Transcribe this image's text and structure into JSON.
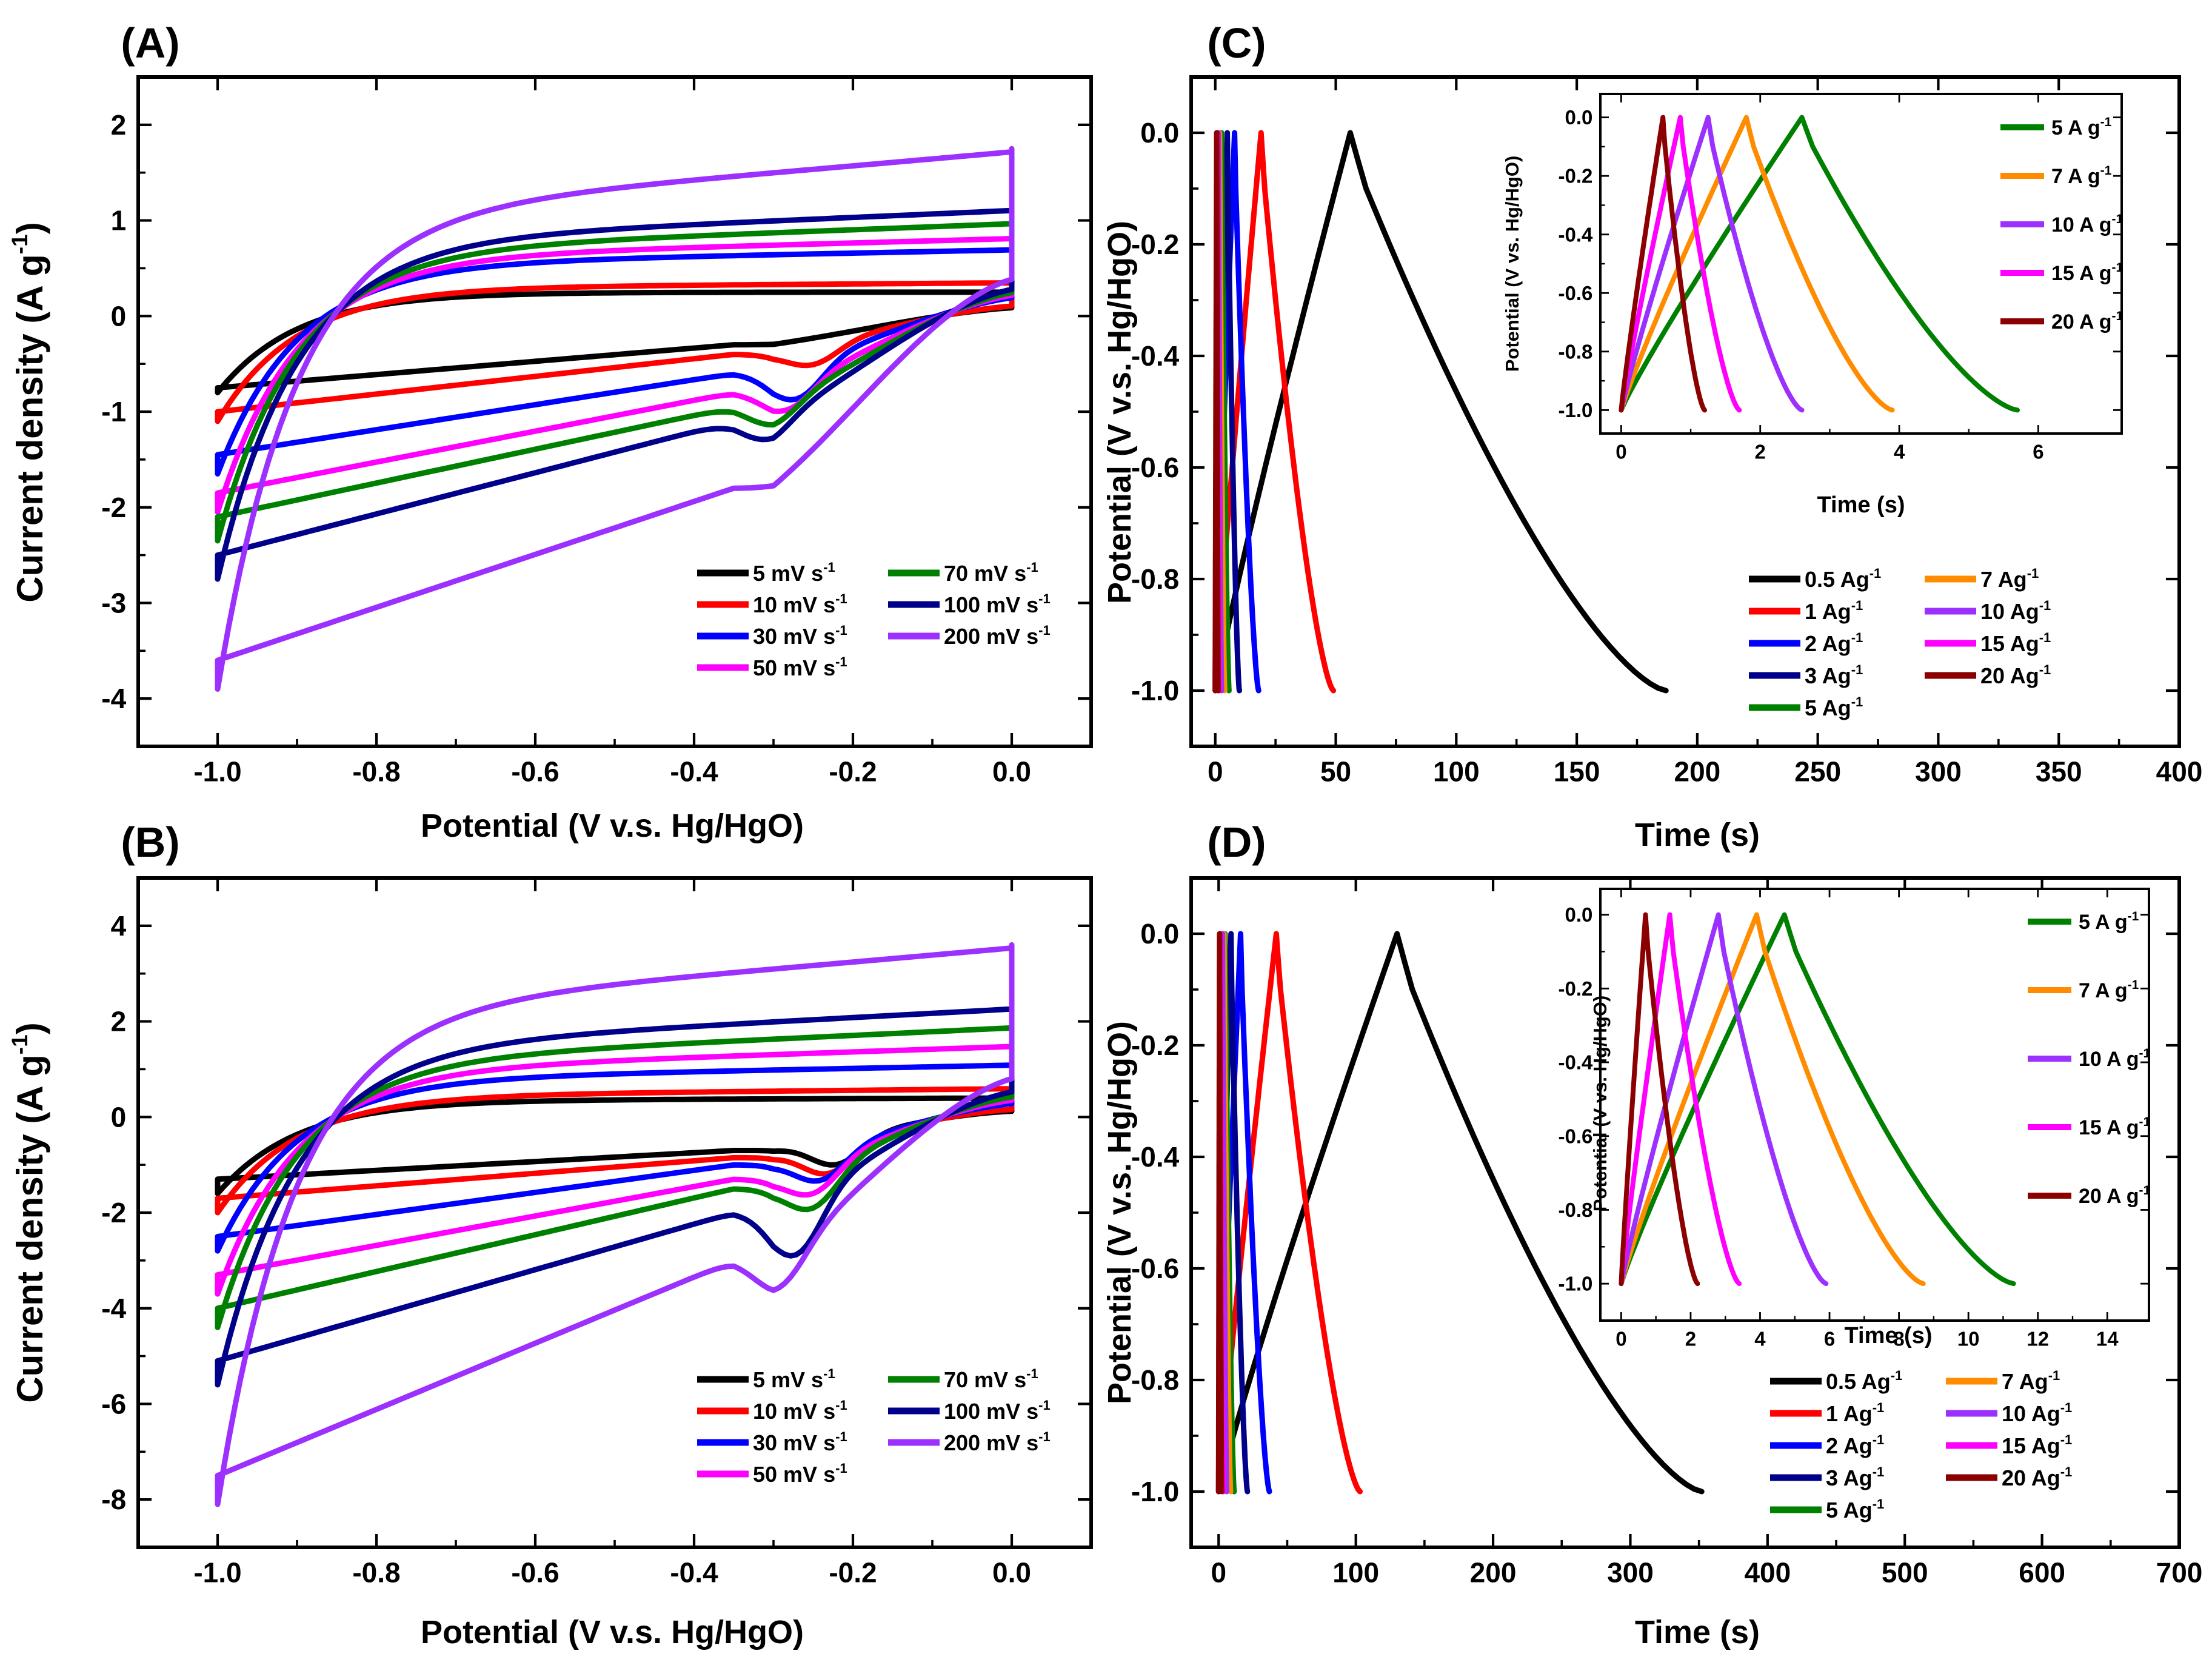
{
  "chart_data": [
    {
      "id": "A",
      "type": "line",
      "subtype": "cyclic-voltammetry",
      "panel_label": "(A)",
      "xlabel": "Potential (V v.s. Hg/HgO)",
      "ylabel": "Current density (A g",
      "ylabel_sup": "-1",
      "ylabel_end": ")",
      "xlim": [
        -1.1,
        0.1
      ],
      "ylim": [
        -4.5,
        2.5
      ],
      "xticks": [
        -1.0,
        -0.8,
        -0.6,
        -0.4,
        -0.2,
        0.0
      ],
      "xtick_labels": [
        "-1.0",
        "-0.8",
        "-0.6",
        "-0.4",
        "-0.2",
        "0.0"
      ],
      "yticks": [
        -4,
        -3,
        -2,
        -1,
        0,
        1,
        2
      ],
      "ytick_labels": [
        "-4",
        "-3",
        "-2",
        "-1",
        "0",
        "1",
        "2"
      ],
      "legend_position": "bottom-right",
      "legend_columns": 2,
      "series": [
        {
          "name": "5 mV s",
          "label_main": "5  mV s",
          "label_sup": "-1",
          "color": "#000000",
          "anodic_min": -0.8,
          "anodic_max": 0.25,
          "cathodic_at_start": -0.75,
          "cathodic_mid": -0.3,
          "cathodic_peak": -0.3,
          "peak_potential": -0.23,
          "baseline_at_zero": 0.25
        },
        {
          "name": "10 mV s",
          "label_main": "10 mV s",
          "label_sup": "-1",
          "color": "#ff0000",
          "anodic_min": -1.1,
          "anodic_max": 0.35,
          "cathodic_at_start": -1.0,
          "cathodic_mid": -0.4,
          "cathodic_peak": -0.6,
          "peak_potential": -0.25,
          "baseline_at_zero": 0.3
        },
        {
          "name": "30 mV s",
          "label_main": "30 mV s",
          "label_sup": "-1",
          "color": "#0000ff",
          "anodic_min": -1.65,
          "anodic_max": 0.7,
          "cathodic_at_start": -1.45,
          "cathodic_mid": -0.6,
          "cathodic_peak": -0.95,
          "peak_potential": -0.27,
          "baseline_at_zero": 0.55
        },
        {
          "name": "50 mV s",
          "label_main": "50 mV s",
          "label_sup": "-1",
          "color": "#ff00ff",
          "anodic_min": -2.05,
          "anodic_max": 0.82,
          "cathodic_at_start": -1.85,
          "cathodic_mid": -0.8,
          "cathodic_peak": -1.05,
          "peak_potential": -0.28,
          "baseline_at_zero": 0.62
        },
        {
          "name": "70 mV s",
          "label_main": "70  mV s",
          "label_sup": "-1",
          "color": "#008000",
          "anodic_min": -2.35,
          "anodic_max": 0.98,
          "cathodic_at_start": -2.1,
          "cathodic_mid": -0.95,
          "cathodic_peak": -1.15,
          "peak_potential": -0.3,
          "baseline_at_zero": 0.7
        },
        {
          "name": "100 mV s",
          "label_main": "100 mV s",
          "label_sup": "-1",
          "color": "#00008b",
          "anodic_min": -2.75,
          "anodic_max": 1.12,
          "cathodic_at_start": -2.5,
          "cathodic_mid": -1.1,
          "cathodic_peak": -1.3,
          "peak_potential": -0.31,
          "baseline_at_zero": 0.8
        },
        {
          "name": "200 mV s",
          "label_main": "200 mV s",
          "label_sup": "-1",
          "color": "#9b30ff",
          "anodic_min": -3.9,
          "anodic_max": 1.75,
          "cathodic_at_start": -3.6,
          "cathodic_mid": -1.8,
          "cathodic_peak": -1.8,
          "peak_potential": -0.33,
          "baseline_at_zero": 1.1
        }
      ]
    },
    {
      "id": "B",
      "type": "line",
      "subtype": "cyclic-voltammetry",
      "panel_label": "(B)",
      "xlabel": "Potential (V v.s. Hg/HgO)",
      "ylabel": "Current density (A g",
      "ylabel_sup": "-1",
      "ylabel_end": ")",
      "xlim": [
        -1.1,
        0.1
      ],
      "ylim": [
        -9.0,
        5.0
      ],
      "xticks": [
        -1.0,
        -0.8,
        -0.6,
        -0.4,
        -0.2,
        0.0
      ],
      "xtick_labels": [
        "-1.0",
        "-0.8",
        "-0.6",
        "-0.4",
        "-0.2",
        "0.0"
      ],
      "yticks": [
        -8,
        -6,
        -4,
        -2,
        0,
        2,
        4
      ],
      "ytick_labels": [
        "-8",
        "-6",
        "-4",
        "-2",
        "0",
        "2",
        "4"
      ],
      "legend_position": "bottom-right",
      "legend_columns": 2,
      "series": [
        {
          "name": "5 mV s",
          "label_main": "5  mV s",
          "label_sup": "-1",
          "color": "#000000",
          "anodic_min": -1.6,
          "anodic_max": 0.4,
          "cathodic_at_start": -1.3,
          "cathodic_mid": -0.7,
          "cathodic_peak": -1.25,
          "peak_potential": -0.22,
          "baseline_at_zero": 0.35
        },
        {
          "name": "10 mV s",
          "label_main": "10 mV s",
          "label_sup": "-1",
          "color": "#ff0000",
          "anodic_min": -2.0,
          "anodic_max": 0.6,
          "cathodic_at_start": -1.7,
          "cathodic_mid": -0.85,
          "cathodic_peak": -1.45,
          "peak_potential": -0.23,
          "baseline_at_zero": 0.45
        },
        {
          "name": "30 mV s",
          "label_main": "30 mV s",
          "label_sup": "-1",
          "color": "#0000ff",
          "anodic_min": -2.8,
          "anodic_max": 1.1,
          "cathodic_at_start": -2.5,
          "cathodic_mid": -1.0,
          "cathodic_peak": -1.6,
          "peak_potential": -0.24,
          "baseline_at_zero": 0.8
        },
        {
          "name": "50 mV s",
          "label_main": "50 mV s",
          "label_sup": "-1",
          "color": "#ff00ff",
          "anodic_min": -3.7,
          "anodic_max": 1.5,
          "cathodic_at_start": -3.3,
          "cathodic_mid": -1.3,
          "cathodic_peak": -1.9,
          "peak_potential": -0.25,
          "baseline_at_zero": 1.0
        },
        {
          "name": "70 mV s",
          "label_main": "70  mV s",
          "label_sup": "-1",
          "color": "#008000",
          "anodic_min": -4.4,
          "anodic_max": 1.9,
          "cathodic_at_start": -4.0,
          "cathodic_mid": -1.5,
          "cathodic_peak": -2.25,
          "peak_potential": -0.25,
          "baseline_at_zero": 1.2
        },
        {
          "name": "100 mV s",
          "label_main": "100 mV s",
          "label_sup": "-1",
          "color": "#00008b",
          "anodic_min": -5.6,
          "anodic_max": 2.3,
          "cathodic_at_start": -5.1,
          "cathodic_mid": -2.0,
          "cathodic_peak": -3.15,
          "peak_potential": -0.27,
          "baseline_at_zero": 1.5
        },
        {
          "name": "200 mV s",
          "label_main": "200 mV s",
          "label_sup": "-1",
          "color": "#9b30ff",
          "anodic_min": -8.1,
          "anodic_max": 3.6,
          "cathodic_at_start": -7.5,
          "cathodic_mid": -3.0,
          "cathodic_peak": -3.7,
          "peak_potential": -0.29,
          "baseline_at_zero": 2.3
        }
      ]
    },
    {
      "id": "C",
      "type": "line",
      "subtype": "galvanostatic-charge-discharge",
      "panel_label": "(C)",
      "xlabel": "Time (s)",
      "ylabel": "Potential (V v.s. Hg/HgO)",
      "xlim": [
        -10,
        400
      ],
      "ylim": [
        -1.1,
        0.1
      ],
      "xticks": [
        0,
        50,
        100,
        150,
        200,
        250,
        300,
        350,
        400
      ],
      "xtick_labels": [
        "0",
        "50",
        "100",
        "150",
        "200",
        "250",
        "300",
        "350",
        "400"
      ],
      "yticks": [
        -1.0,
        -0.8,
        -0.6,
        -0.4,
        -0.2,
        0.0
      ],
      "ytick_labels": [
        "-1.0",
        "-0.8",
        "-0.6",
        "-0.4",
        "-0.2",
        "0.0"
      ],
      "legend_position": "lower-middle",
      "legend_columns": 2,
      "series": [
        {
          "name": "0.5 A/g",
          "label_main": "0.5  Ag",
          "label_sup": "-1",
          "color": "#000000",
          "t_charge": 56,
          "t_end": 187
        },
        {
          "name": "1 A/g",
          "label_main": "1  Ag",
          "label_sup": "-1",
          "color": "#ff0000",
          "t_charge": 19,
          "t_end": 49
        },
        {
          "name": "2 A/g",
          "label_main": "2  Ag",
          "label_sup": "-1",
          "color": "#0000ff",
          "t_charge": 8,
          "t_end": 18
        },
        {
          "name": "3 A/g",
          "label_main": "3  Ag",
          "label_sup": "-1",
          "color": "#00008b",
          "t_charge": 5,
          "t_end": 10
        },
        {
          "name": "5 A/g",
          "label_main": "5  Ag",
          "label_sup": "-1",
          "color": "#008000",
          "t_charge": 2.6,
          "t_end": 5.7
        },
        {
          "name": "7 A/g",
          "label_main": "7  Ag",
          "label_sup": "-1",
          "color": "#ff8c00",
          "t_charge": 1.8,
          "t_end": 3.9
        },
        {
          "name": "10 A/g",
          "label_main": "10  Ag",
          "label_sup": "-1",
          "color": "#9b30ff",
          "t_charge": 1.25,
          "t_end": 2.6
        },
        {
          "name": "15 A/g",
          "label_main": "15  Ag",
          "label_sup": "-1",
          "color": "#ff00ff",
          "t_charge": 0.85,
          "t_end": 1.7
        },
        {
          "name": "20 A/g",
          "label_main": "20  Ag",
          "label_sup": "-1",
          "color": "#8b0000",
          "t_charge": 0.6,
          "t_end": 1.2
        }
      ],
      "inset": {
        "xlabel": "Time (s)",
        "ylabel": "Potential (V vs. Hg/HgO)",
        "xlim": [
          -0.3,
          7.2
        ],
        "ylim": [
          -1.08,
          0.08
        ],
        "xticks": [
          0,
          2,
          4,
          6
        ],
        "xtick_labels": [
          "0",
          "2",
          "4",
          "6"
        ],
        "yticks": [
          -1.0,
          -0.8,
          -0.6,
          -0.4,
          -0.2,
          0.0
        ],
        "ytick_labels": [
          "-1.0",
          "-0.8",
          "-0.6",
          "-0.4",
          "-0.2",
          "0.0"
        ],
        "series": [
          {
            "name": "5 A/g",
            "label_main": "5  A g",
            "label_sup": "-1",
            "color": "#008000",
            "t_charge": 2.6,
            "t_end": 5.7
          },
          {
            "name": "7 A/g",
            "label_main": "7  A g",
            "label_sup": "-1",
            "color": "#ff8c00",
            "t_charge": 1.8,
            "t_end": 3.9
          },
          {
            "name": "10 A/g",
            "label_main": "10 A g",
            "label_sup": "-1",
            "color": "#9b30ff",
            "t_charge": 1.25,
            "t_end": 2.6
          },
          {
            "name": "15 A/g",
            "label_main": "15 A g",
            "label_sup": "-1",
            "color": "#ff00ff",
            "t_charge": 0.85,
            "t_end": 1.7
          },
          {
            "name": "20 A/g",
            "label_main": "20 A g",
            "label_sup": "-1",
            "color": "#8b0000",
            "t_charge": 0.6,
            "t_end": 1.2
          }
        ]
      }
    },
    {
      "id": "D",
      "type": "line",
      "subtype": "galvanostatic-charge-discharge",
      "panel_label": "(D)",
      "xlabel": "Time (s)",
      "ylabel": "Potential (V v.s. Hg/HgO)",
      "xlim": [
        -20,
        700
      ],
      "ylim": [
        -1.1,
        0.1
      ],
      "xticks": [
        0,
        100,
        200,
        300,
        400,
        500,
        600,
        700
      ],
      "xtick_labels": [
        "0",
        "100",
        "200",
        "300",
        "400",
        "500",
        "600",
        "700"
      ],
      "yticks": [
        -1.0,
        -0.8,
        -0.6,
        -0.4,
        -0.2,
        0.0
      ],
      "ytick_labels": [
        "-1.0",
        "-0.8",
        "-0.6",
        "-0.4",
        "-0.2",
        "0.0"
      ],
      "legend_position": "lower-middle",
      "legend_columns": 2,
      "series": [
        {
          "name": "0.5 A/g",
          "label_main": "0.5  Ag",
          "label_sup": "-1",
          "color": "#000000",
          "t_charge": 130,
          "t_end": 352
        },
        {
          "name": "1 A/g",
          "label_main": "1  Ag",
          "label_sup": "-1",
          "color": "#ff0000",
          "t_charge": 42,
          "t_end": 103
        },
        {
          "name": "2 A/g",
          "label_main": "2  Ag",
          "label_sup": "-1",
          "color": "#0000ff",
          "t_charge": 16,
          "t_end": 37
        },
        {
          "name": "3 A/g",
          "label_main": "3  Ag",
          "label_sup": "-1",
          "color": "#00008b",
          "t_charge": 9,
          "t_end": 21
        },
        {
          "name": "5 A/g",
          "label_main": "5  Ag",
          "label_sup": "-1",
          "color": "#008000",
          "t_charge": 4.7,
          "t_end": 11.3
        },
        {
          "name": "7 A/g",
          "label_main": "7  Ag",
          "label_sup": "-1",
          "color": "#ff8c00",
          "t_charge": 3.9,
          "t_end": 8.7
        },
        {
          "name": "10 A/g",
          "label_main": "10  Ag",
          "label_sup": "-1",
          "color": "#9b30ff",
          "t_charge": 2.8,
          "t_end": 5.9
        },
        {
          "name": "15 A/g",
          "label_main": "15  Ag",
          "label_sup": "-1",
          "color": "#ff00ff",
          "t_charge": 1.4,
          "t_end": 3.4
        },
        {
          "name": "20 A/g",
          "label_main": "20  Ag",
          "label_sup": "-1",
          "color": "#8b0000",
          "t_charge": 0.7,
          "t_end": 2.2
        }
      ],
      "inset": {
        "xlabel": "Time (s)",
        "ylabel": "Potential (V vs. Hg/HgO)",
        "xlim": [
          -0.6,
          15.2
        ],
        "ylim": [
          -1.1,
          0.07
        ],
        "xticks": [
          0,
          2,
          4,
          6,
          8,
          10,
          12,
          14
        ],
        "xtick_labels": [
          "0",
          "2",
          "4",
          "6",
          "8",
          "10",
          "12",
          "14"
        ],
        "yticks": [
          -1.0,
          -0.8,
          -0.6,
          -0.4,
          -0.2,
          0.0
        ],
        "ytick_labels": [
          "-1.0",
          "-0.8",
          "-0.6",
          "-0.4",
          "-0.2",
          "0.0"
        ],
        "series": [
          {
            "name": "5 A/g",
            "label_main": "5  A g",
            "label_sup": "-1",
            "color": "#008000",
            "t_charge": 4.7,
            "t_end": 11.3
          },
          {
            "name": "7 A/g",
            "label_main": "7  A g",
            "label_sup": "-1",
            "color": "#ff8c00",
            "t_charge": 3.9,
            "t_end": 8.7
          },
          {
            "name": "10 A/g",
            "label_main": "10 A g",
            "label_sup": "-1",
            "color": "#9b30ff",
            "t_charge": 2.8,
            "t_end": 5.9
          },
          {
            "name": "15 A/g",
            "label_main": "15 A g",
            "label_sup": "-1",
            "color": "#ff00ff",
            "t_charge": 1.4,
            "t_end": 3.4
          },
          {
            "name": "20 A/g",
            "label_main": "20 A g",
            "label_sup": "-1",
            "color": "#8b0000",
            "t_charge": 0.7,
            "t_end": 2.2
          }
        ]
      }
    }
  ]
}
